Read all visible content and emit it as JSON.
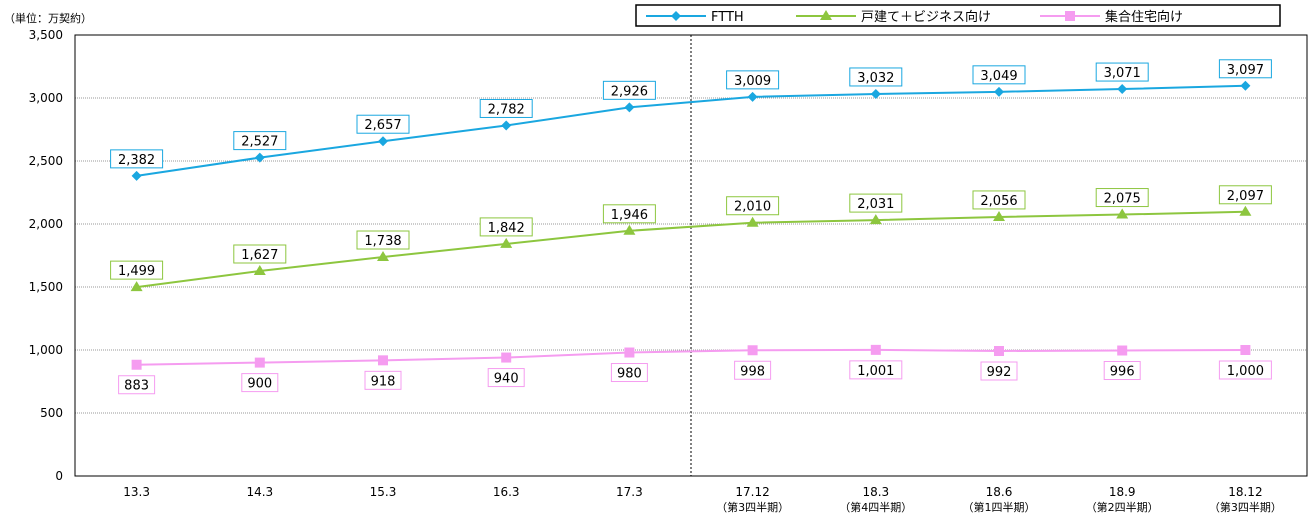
{
  "chart_data": {
    "type": "line",
    "unit_label": "（単位：万契約）",
    "categories": [
      "13.3",
      "14.3",
      "15.3",
      "16.3",
      "17.3",
      "17.12",
      "18.3",
      "18.6",
      "18.9",
      "18.12"
    ],
    "category_sublabels": [
      "",
      "",
      "",
      "",
      "",
      "（第3四半期）",
      "（第4四半期）",
      "（第1四半期）",
      "（第2四半期）",
      "（第3四半期）"
    ],
    "y_ticks": [
      "0",
      "500",
      "1,000",
      "1,500",
      "2,000",
      "2,500",
      "3,000",
      "3,500"
    ],
    "ylim": [
      0,
      3500
    ],
    "grid": true,
    "legend_position": "top-right",
    "divider_after_category": "17.3",
    "series": [
      {
        "name": "FTTH",
        "color": "#1AA7E0",
        "marker": "diamond",
        "values": [
          2382,
          2527,
          2657,
          2782,
          2926,
          3009,
          3032,
          3049,
          3071,
          3097
        ],
        "labels": [
          "2,382",
          "2,527",
          "2,657",
          "2,782",
          "2,926",
          "3,009",
          "3,032",
          "3,049",
          "3,071",
          "3,097"
        ],
        "label_position": "above"
      },
      {
        "name": "戸建て＋ビジネス向け",
        "color": "#8DC63F",
        "marker": "triangle",
        "values": [
          1499,
          1627,
          1738,
          1842,
          1946,
          2010,
          2031,
          2056,
          2075,
          2097
        ],
        "labels": [
          "1,499",
          "1,627",
          "1,738",
          "1,842",
          "1,946",
          "2,010",
          "2,031",
          "2,056",
          "2,075",
          "2,097"
        ],
        "label_position": "above"
      },
      {
        "name": "集合住宅向け",
        "color": "#F59CF0",
        "marker": "square",
        "values": [
          883,
          900,
          918,
          940,
          980,
          998,
          1001,
          992,
          996,
          1000
        ],
        "labels": [
          "883",
          "900",
          "918",
          "940",
          "980",
          "998",
          "1,001",
          "992",
          "996",
          "1,000"
        ],
        "label_position": "below"
      }
    ]
  }
}
